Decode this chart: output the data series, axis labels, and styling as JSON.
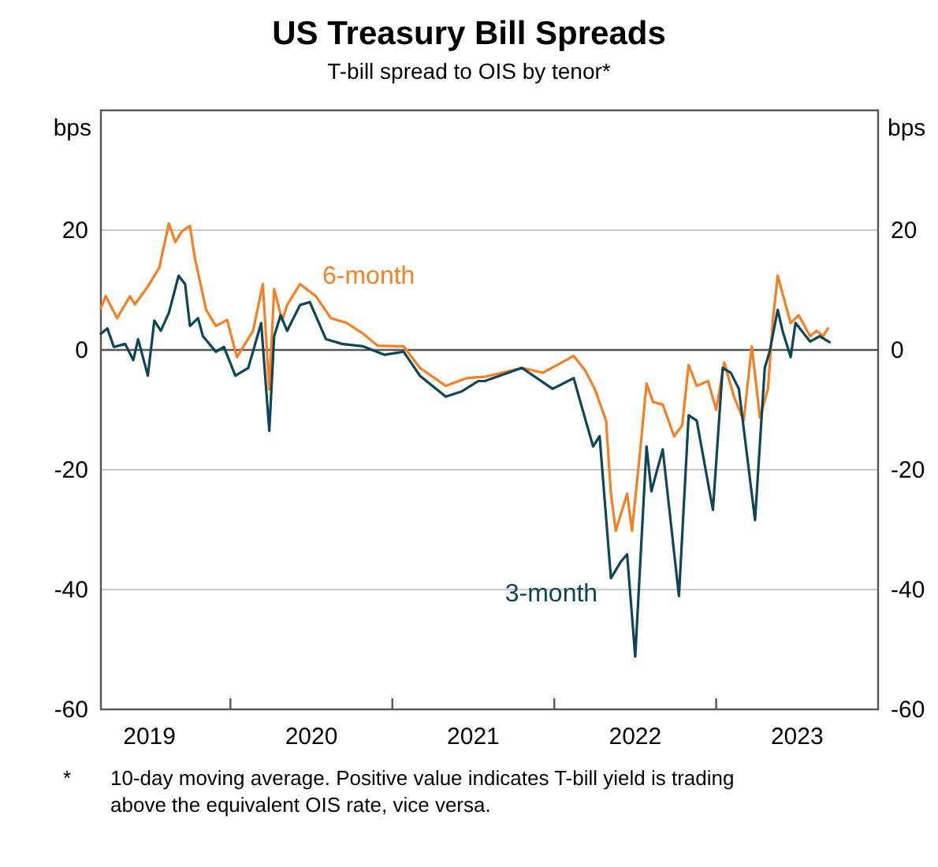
{
  "chart_data": {
    "type": "line",
    "title": "US Treasury Bill Spreads",
    "subtitle": "T-bill spread to OIS by tenor*",
    "ylabel": "bps",
    "y2label": "bps",
    "xlim": [
      2019.2,
      2024
    ],
    "xticks": [
      {
        "value": 2019.5,
        "label": "2019"
      },
      {
        "value": 2020,
        "label": null
      },
      {
        "value": 2020.5,
        "label": "2020"
      },
      {
        "value": 2021,
        "label": null
      },
      {
        "value": 2021.5,
        "label": "2021"
      },
      {
        "value": 2022,
        "label": null
      },
      {
        "value": 2022.5,
        "label": "2022"
      },
      {
        "value": 2023,
        "label": null
      },
      {
        "value": 2023.5,
        "label": "2023"
      }
    ],
    "ylim": [
      -60,
      40
    ],
    "yticks": [
      -60,
      -40,
      -20,
      0,
      20
    ],
    "y2lim": [
      -60,
      40
    ],
    "y2ticks": [
      -60,
      -40,
      -20,
      0,
      20
    ],
    "grid": "y",
    "line_style": "solid",
    "marker": "none",
    "ref_lines": [
      {
        "axis": "y",
        "value": 0,
        "color": "#555555"
      }
    ],
    "series": [
      {
        "name": "6-month",
        "color": "#f77f23",
        "x": [
          2019.2,
          2019.23,
          2019.3,
          2019.38,
          2019.41,
          2019.49,
          2019.56,
          2019.62,
          2019.66,
          2019.7,
          2019.75,
          2019.78,
          2019.85,
          2019.91,
          2019.98,
          2020.04,
          2020.14,
          2020.2,
          2020.24,
          2020.27,
          2020.32,
          2020.35,
          2020.43,
          2020.53,
          2020.62,
          2020.72,
          2020.82,
          2020.91,
          2021.07,
          2021.17,
          2021.33,
          2021.46,
          2021.57,
          2021.8,
          2021.93,
          2022.12,
          2022.19,
          2022.25,
          2022.32,
          2022.35,
          2022.38,
          2022.45,
          2022.48,
          2022.53,
          2022.57,
          2022.61,
          2022.67,
          2022.74,
          2022.79,
          2022.83,
          2022.88,
          2022.95,
          2023.0,
          2023.05,
          2023.11,
          2023.17,
          2023.22,
          2023.27,
          2023.32,
          2023.35,
          2023.38,
          2023.46,
          2023.51,
          2023.58,
          2023.62,
          2023.66,
          2023.69
        ],
        "values": [
          7,
          9,
          5.3,
          9,
          7.6,
          10.6,
          13.7,
          21.1,
          18,
          19.8,
          20.7,
          15.4,
          6.7,
          4,
          5,
          -1.2,
          3.2,
          11,
          -6.6,
          10.2,
          4.9,
          7.5,
          11,
          8.9,
          5.3,
          4.5,
          2.7,
          0.7,
          0.6,
          -3,
          -6,
          -4.7,
          -4.5,
          -3,
          -3.8,
          -1,
          -3.4,
          -6.5,
          -11.8,
          -24,
          -30.2,
          -24,
          -30.2,
          -17,
          -5.6,
          -8.7,
          -9.1,
          -14.4,
          -12.6,
          -2.5,
          -6,
          -5.2,
          -10,
          -2.1,
          -7.8,
          -11.8,
          0.6,
          -11.3,
          -6.5,
          4.9,
          12.4,
          4.5,
          5.8,
          2.3,
          3.2,
          2.3,
          3.6
        ]
      },
      {
        "name": "3-month",
        "color": "#0c4657",
        "x": [
          2019.2,
          2019.24,
          2019.28,
          2019.35,
          2019.4,
          2019.43,
          2019.49,
          2019.53,
          2019.57,
          2019.62,
          2019.68,
          2019.72,
          2019.75,
          2019.8,
          2019.83,
          2019.91,
          2019.96,
          2020.03,
          2020.11,
          2020.19,
          2020.24,
          2020.27,
          2020.31,
          2020.35,
          2020.43,
          2020.49,
          2020.59,
          2020.69,
          2020.82,
          2020.95,
          2021.07,
          2021.17,
          2021.33,
          2021.43,
          2021.53,
          2021.57,
          2021.8,
          2021.99,
          2022.12,
          2022.17,
          2022.24,
          2022.28,
          2022.35,
          2022.41,
          2022.45,
          2022.5,
          2022.57,
          2022.6,
          2022.67,
          2022.77,
          2022.83,
          2022.88,
          2022.98,
          2023.04,
          2023.09,
          2023.14,
          2023.24,
          2023.3,
          2023.33,
          2023.38,
          2023.41,
          2023.46,
          2023.49,
          2023.58,
          2023.64,
          2023.7
        ],
        "values": [
          2.7,
          3.6,
          0.5,
          1,
          -1.7,
          1.8,
          -4.3,
          4.9,
          3.2,
          6.2,
          12.4,
          11,
          4,
          5.3,
          2.3,
          -0.3,
          0.5,
          -4.3,
          -3,
          4.5,
          -13.5,
          2.3,
          5.8,
          3.2,
          7.5,
          8,
          1.8,
          1,
          0.6,
          -0.8,
          -0.3,
          -4.3,
          -7.8,
          -6.9,
          -5.2,
          -5.2,
          -3,
          -6.5,
          -4.7,
          -9.5,
          -16.1,
          -14.4,
          -38.1,
          -35.4,
          -34.1,
          -51.2,
          -16.1,
          -23.6,
          -16.6,
          -41.1,
          -10.9,
          -11.8,
          -26.7,
          -3,
          -3.8,
          -6.5,
          -28.4,
          -3,
          -0.3,
          6.7,
          3.2,
          -1.2,
          4.5,
          1.4,
          2.3,
          1.3
        ]
      }
    ],
    "annotations": [
      "*\t10-day moving average. Positive value indicates T-bill yield is trading above the equivalent OIS rate, vice versa."
    ]
  }
}
